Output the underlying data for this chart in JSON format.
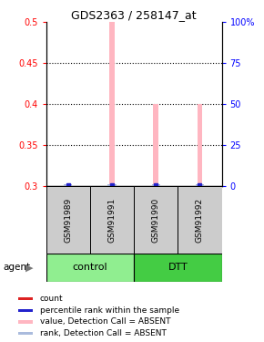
{
  "title": "GDS2363 / 258147_at",
  "samples": [
    "GSM91989",
    "GSM91991",
    "GSM91990",
    "GSM91992"
  ],
  "bar_values": [
    0.3,
    0.5,
    0.4,
    0.4
  ],
  "ylim_left": [
    0.3,
    0.5
  ],
  "ylim_right": [
    0,
    100
  ],
  "yticks_left": [
    0.3,
    0.35,
    0.4,
    0.45,
    0.5
  ],
  "yticks_right": [
    0,
    25,
    50,
    75,
    100
  ],
  "ytick_labels_left": [
    "0.3",
    "0.35",
    "0.4",
    "0.45",
    "0.5"
  ],
  "ytick_labels_right": [
    "0",
    "25",
    "50",
    "75",
    "100%"
  ],
  "bar_color_absent": "#FFB6C1",
  "rank_color_absent": "#AABBDD",
  "blue_marker_color": "#2222CC",
  "bar_width": 0.12,
  "legend_items": [
    {
      "color": "#DD2222",
      "label": "count"
    },
    {
      "color": "#2222CC",
      "label": "percentile rank within the sample"
    },
    {
      "color": "#FFB6C1",
      "label": "value, Detection Call = ABSENT"
    },
    {
      "color": "#AABBDD",
      "label": "rank, Detection Call = ABSENT"
    }
  ],
  "control_color": "#90EE90",
  "dtt_color": "#44CC44",
  "sample_box_color": "#CCCCCC",
  "agent_label": "agent"
}
